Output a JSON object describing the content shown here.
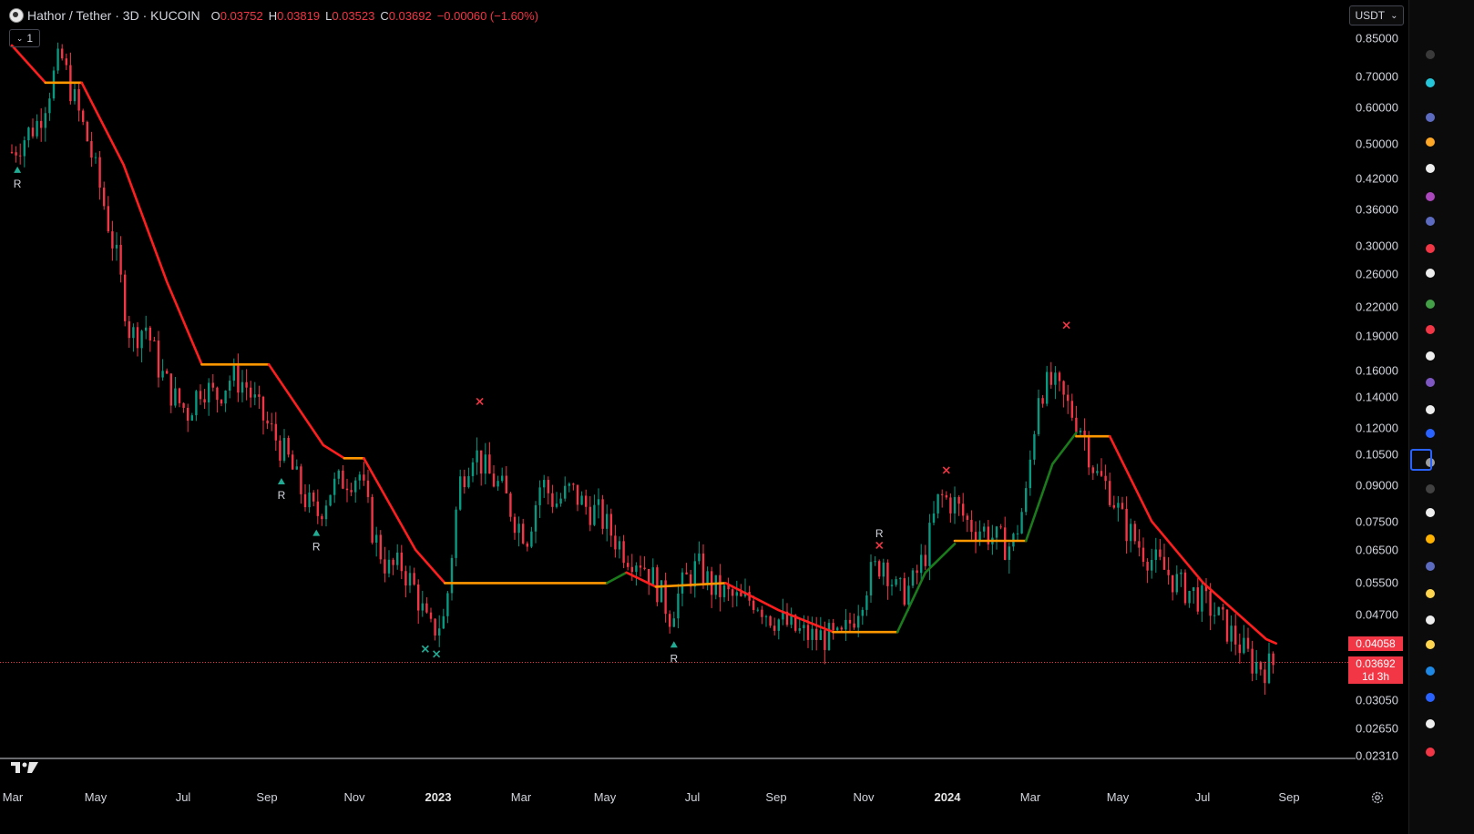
{
  "header": {
    "symbol": "Hathor / Tether · 3D · KUCOIN",
    "ohlc": {
      "o_label": "O",
      "o": "0.03752",
      "h_label": "H",
      "h": "0.03819",
      "l_label": "L",
      "l": "0.03523",
      "c_label": "C",
      "c": "0.03692",
      "change": "−0.00060 (−1.60%)"
    },
    "interval_value": "1"
  },
  "currency_selector": {
    "label": "USDT",
    "icon": "chevron-down-icon"
  },
  "colors": {
    "background": "#000000",
    "up_candle": "#089981",
    "down_candle": "#f23645",
    "supertrend_down": "#ff1e1e",
    "supertrend_up": "#1b7a1b",
    "supertrend_flat": "#ff9800",
    "axis_text": "#d1d4dc"
  },
  "price_badges": {
    "supertrend_value": "0.04058",
    "last_price": "0.03692",
    "countdown": "1d 3h"
  },
  "chart_data": {
    "type": "candlestick",
    "title": "Hathor / Tether · 3D · KUCOIN",
    "y_scale": "log",
    "ylim": [
      0.0231,
      0.88
    ],
    "y_ticks": [
      "0.85000",
      "0.70000",
      "0.60000",
      "0.50000",
      "0.42000",
      "0.36000",
      "0.30000",
      "0.26000",
      "0.22000",
      "0.19000",
      "0.16000",
      "0.14000",
      "0.12000",
      "0.10500",
      "0.09000",
      "0.07500",
      "0.06500",
      "0.05500",
      "0.04700",
      "0.03050",
      "0.02650",
      "0.02310"
    ],
    "x_ticks": [
      {
        "label": "Mar",
        "year": false
      },
      {
        "label": "May",
        "year": false
      },
      {
        "label": "Jul",
        "year": false
      },
      {
        "label": "Sep",
        "year": false
      },
      {
        "label": "Nov",
        "year": false
      },
      {
        "label": "2023",
        "year": true
      },
      {
        "label": "Mar",
        "year": false
      },
      {
        "label": "May",
        "year": false
      },
      {
        "label": "Jul",
        "year": false
      },
      {
        "label": "Sep",
        "year": false
      },
      {
        "label": "Nov",
        "year": false
      },
      {
        "label": "2024",
        "year": true
      },
      {
        "label": "Mar",
        "year": false
      },
      {
        "label": "May",
        "year": false
      },
      {
        "label": "Jul",
        "year": false
      },
      {
        "label": "Sep",
        "year": false
      }
    ],
    "x_range": [
      "2022-03-01",
      "2024-09-01"
    ],
    "price_path": [
      [
        "2022-03-01",
        0.48
      ],
      [
        "2022-03-20",
        0.56
      ],
      [
        "2022-04-05",
        0.78
      ],
      [
        "2022-04-15",
        0.62
      ],
      [
        "2022-04-25",
        0.5
      ],
      [
        "2022-05-05",
        0.38
      ],
      [
        "2022-05-15",
        0.28
      ],
      [
        "2022-05-25",
        0.19
      ],
      [
        "2022-06-05",
        0.2
      ],
      [
        "2022-06-15",
        0.16
      ],
      [
        "2022-06-25",
        0.14
      ],
      [
        "2022-07-05",
        0.13
      ],
      [
        "2022-07-15",
        0.15
      ],
      [
        "2022-07-25",
        0.14
      ],
      [
        "2022-08-05",
        0.155
      ],
      [
        "2022-08-15",
        0.15
      ],
      [
        "2022-08-25",
        0.13
      ],
      [
        "2022-09-05",
        0.115
      ],
      [
        "2022-09-15",
        0.102
      ],
      [
        "2022-09-25",
        0.086
      ],
      [
        "2022-10-05",
        0.077
      ],
      [
        "2022-10-15",
        0.088
      ],
      [
        "2022-10-25",
        0.093
      ],
      [
        "2022-11-05",
        0.095
      ],
      [
        "2022-11-15",
        0.07
      ],
      [
        "2022-11-25",
        0.059
      ],
      [
        "2022-12-05",
        0.06
      ],
      [
        "2022-12-15",
        0.053
      ],
      [
        "2022-12-25",
        0.043
      ],
      [
        "2023-01-05",
        0.046
      ],
      [
        "2023-01-15",
        0.09
      ],
      [
        "2023-01-25",
        0.108
      ],
      [
        "2023-02-05",
        0.095
      ],
      [
        "2023-02-15",
        0.088
      ],
      [
        "2023-02-25",
        0.075
      ],
      [
        "2023-03-05",
        0.07
      ],
      [
        "2023-03-15",
        0.092
      ],
      [
        "2023-03-25",
        0.082
      ],
      [
        "2023-04-05",
        0.088
      ],
      [
        "2023-04-15",
        0.081
      ],
      [
        "2023-04-25",
        0.078
      ],
      [
        "2023-05-05",
        0.07
      ],
      [
        "2023-05-15",
        0.064
      ],
      [
        "2023-05-25",
        0.062
      ],
      [
        "2023-06-05",
        0.055
      ],
      [
        "2023-06-15",
        0.047
      ],
      [
        "2023-06-25",
        0.055
      ],
      [
        "2023-07-05",
        0.06
      ],
      [
        "2023-07-15",
        0.054
      ],
      [
        "2023-07-25",
        0.052
      ],
      [
        "2023-08-05",
        0.05
      ],
      [
        "2023-08-15",
        0.051
      ],
      [
        "2023-08-25",
        0.047
      ],
      [
        "2023-09-05",
        0.045
      ],
      [
        "2023-09-15",
        0.043
      ],
      [
        "2023-09-25",
        0.042
      ],
      [
        "2023-10-05",
        0.042
      ],
      [
        "2023-10-15",
        0.041
      ],
      [
        "2023-10-25",
        0.047
      ],
      [
        "2023-11-05",
        0.057
      ],
      [
        "2023-11-15",
        0.062
      ],
      [
        "2023-11-25",
        0.052
      ],
      [
        "2023-12-05",
        0.054
      ],
      [
        "2023-12-15",
        0.064
      ],
      [
        "2023-12-25",
        0.085
      ],
      [
        "2024-01-05",
        0.082
      ],
      [
        "2024-01-15",
        0.074
      ],
      [
        "2024-01-25",
        0.072
      ],
      [
        "2024-02-05",
        0.068
      ],
      [
        "2024-02-15",
        0.066
      ],
      [
        "2024-02-25",
        0.085
      ],
      [
        "2024-03-05",
        0.145
      ],
      [
        "2024-03-15",
        0.15
      ],
      [
        "2024-03-25",
        0.135
      ],
      [
        "2024-04-05",
        0.12
      ],
      [
        "2024-04-15",
        0.095
      ],
      [
        "2024-04-25",
        0.088
      ],
      [
        "2024-05-05",
        0.074
      ],
      [
        "2024-05-15",
        0.067
      ],
      [
        "2024-05-25",
        0.062
      ],
      [
        "2024-06-05",
        0.058
      ],
      [
        "2024-06-15",
        0.054
      ],
      [
        "2024-06-25",
        0.052
      ],
      [
        "2024-07-05",
        0.049
      ],
      [
        "2024-07-15",
        0.045
      ],
      [
        "2024-07-25",
        0.041
      ],
      [
        "2024-08-05",
        0.037
      ],
      [
        "2024-08-15",
        0.036
      ],
      [
        "2024-08-22",
        0.0369
      ]
    ],
    "supertrend": [
      {
        "segment": "down",
        "points": [
          [
            "2022-03-01",
            0.82
          ],
          [
            "2022-03-25",
            0.68
          ]
        ]
      },
      {
        "segment": "flat",
        "points": [
          [
            "2022-03-25",
            0.68
          ],
          [
            "2022-04-20",
            0.68
          ]
        ]
      },
      {
        "segment": "down",
        "points": [
          [
            "2022-04-20",
            0.68
          ],
          [
            "2022-05-20",
            0.45
          ],
          [
            "2022-06-20",
            0.25
          ],
          [
            "2022-07-15",
            0.165
          ]
        ]
      },
      {
        "segment": "flat",
        "points": [
          [
            "2022-07-15",
            0.165
          ],
          [
            "2022-09-01",
            0.165
          ]
        ]
      },
      {
        "segment": "down",
        "points": [
          [
            "2022-09-01",
            0.165
          ],
          [
            "2022-10-10",
            0.11
          ],
          [
            "2022-10-25",
            0.103
          ]
        ]
      },
      {
        "segment": "flat",
        "points": [
          [
            "2022-10-25",
            0.103
          ],
          [
            "2022-11-08",
            0.103
          ]
        ]
      },
      {
        "segment": "down",
        "points": [
          [
            "2022-11-08",
            0.103
          ],
          [
            "2022-12-15",
            0.065
          ],
          [
            "2023-01-05",
            0.055
          ]
        ]
      },
      {
        "segment": "flat",
        "points": [
          [
            "2023-01-05",
            0.055
          ],
          [
            "2023-05-01",
            0.055
          ]
        ]
      },
      {
        "segment": "up",
        "points": [
          [
            "2023-05-01",
            0.055
          ],
          [
            "2023-05-15",
            0.058
          ]
        ]
      },
      {
        "segment": "down",
        "points": [
          [
            "2023-05-15",
            0.058
          ],
          [
            "2023-06-05",
            0.054
          ]
        ]
      },
      {
        "segment": "flat",
        "points": [
          [
            "2023-06-05",
            0.054
          ],
          [
            "2023-07-25",
            0.055
          ]
        ]
      },
      {
        "segment": "down",
        "points": [
          [
            "2023-07-25",
            0.055
          ],
          [
            "2023-09-01",
            0.048
          ],
          [
            "2023-10-10",
            0.043
          ]
        ]
      },
      {
        "segment": "flat",
        "points": [
          [
            "2023-10-10",
            0.043
          ],
          [
            "2023-11-25",
            0.043
          ]
        ]
      },
      {
        "segment": "up",
        "points": [
          [
            "2023-11-25",
            0.043
          ],
          [
            "2023-12-15",
            0.058
          ],
          [
            "2024-01-05",
            0.067
          ]
        ]
      },
      {
        "segment": "flat",
        "points": [
          [
            "2024-01-05",
            0.068
          ],
          [
            "2024-02-25",
            0.068
          ]
        ]
      },
      {
        "segment": "up",
        "points": [
          [
            "2024-02-25",
            0.068
          ],
          [
            "2024-03-15",
            0.1
          ],
          [
            "2024-04-01",
            0.117
          ]
        ]
      },
      {
        "segment": "flat",
        "points": [
          [
            "2024-04-01",
            0.115
          ],
          [
            "2024-04-25",
            0.115
          ]
        ]
      },
      {
        "segment": "down",
        "points": [
          [
            "2024-04-25",
            0.115
          ],
          [
            "2024-05-25",
            0.075
          ],
          [
            "2024-07-01",
            0.055
          ],
          [
            "2024-08-15",
            0.0415
          ],
          [
            "2024-08-22",
            0.0406
          ]
        ]
      }
    ],
    "signals": [
      {
        "date": "2022-03-05",
        "price": 0.44,
        "kind": "buy",
        "label": "R"
      },
      {
        "date": "2022-09-10",
        "price": 0.092,
        "kind": "buy",
        "label": "R"
      },
      {
        "date": "2022-10-05",
        "price": 0.071,
        "kind": "buy",
        "label": "R"
      },
      {
        "date": "2022-12-22",
        "price": 0.0395,
        "kind": "cross_up",
        "label": ""
      },
      {
        "date": "2022-12-30",
        "price": 0.0385,
        "kind": "cross_up",
        "label": ""
      },
      {
        "date": "2023-01-30",
        "price": 0.137,
        "kind": "cross_down",
        "label": ""
      },
      {
        "date": "2023-06-18",
        "price": 0.0405,
        "kind": "buy",
        "label": "R"
      },
      {
        "date": "2023-11-12",
        "price": 0.0665,
        "kind": "cross_down",
        "label": "R"
      },
      {
        "date": "2023-12-30",
        "price": 0.097,
        "kind": "cross_down",
        "label": ""
      },
      {
        "date": "2024-03-25",
        "price": 0.201,
        "kind": "cross_down",
        "label": ""
      }
    ]
  },
  "icons": {
    "tradingview_logo": "tradingview-logo-icon",
    "settings": "gear-icon"
  }
}
